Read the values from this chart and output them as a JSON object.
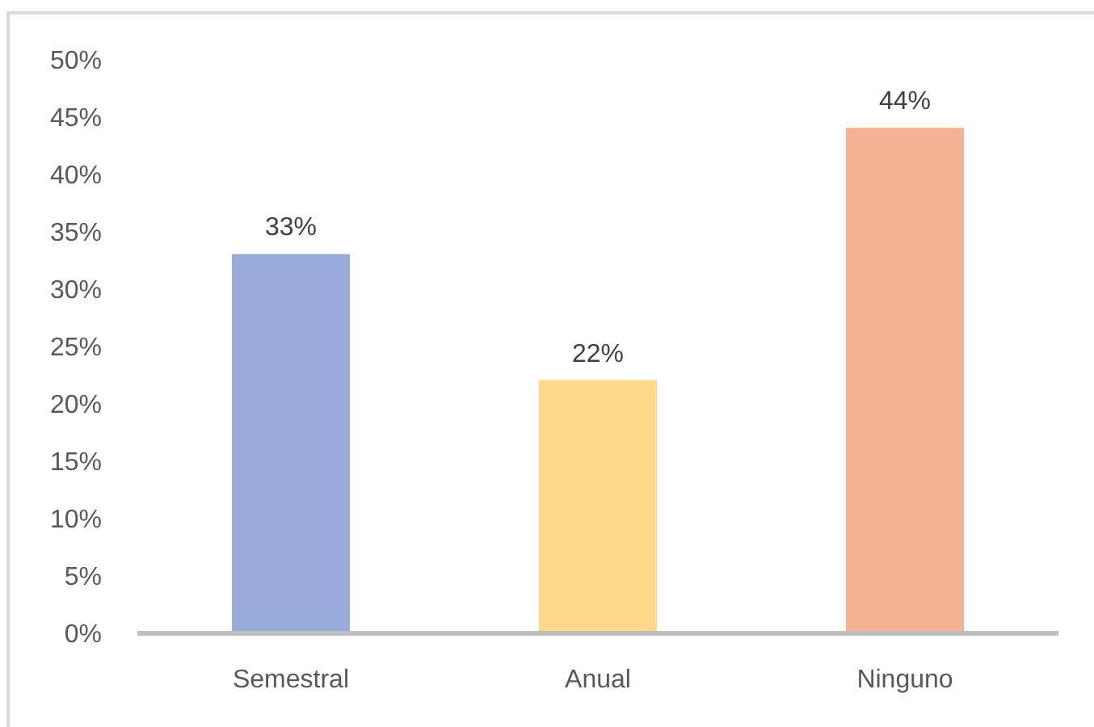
{
  "chart_data": {
    "type": "bar",
    "categories": [
      "Semestral",
      "Anual",
      "Ninguno"
    ],
    "values": [
      33,
      22,
      44
    ],
    "colors": [
      "#98acdc",
      "#fed98b",
      "#f5b194"
    ],
    "value_labels": [
      "33%",
      "22%",
      "44%"
    ],
    "ylim": [
      0,
      50
    ],
    "yticks": [
      {
        "value": 0,
        "label": "0%"
      },
      {
        "value": 5,
        "label": "5%"
      },
      {
        "value": 10,
        "label": "10%"
      },
      {
        "value": 15,
        "label": "15%"
      },
      {
        "value": 20,
        "label": "20%"
      },
      {
        "value": 25,
        "label": "25%"
      },
      {
        "value": 30,
        "label": "30%"
      },
      {
        "value": 35,
        "label": "35%"
      },
      {
        "value": 40,
        "label": "40%"
      },
      {
        "value": 45,
        "label": "45%"
      },
      {
        "value": 50,
        "label": "50%"
      }
    ]
  }
}
